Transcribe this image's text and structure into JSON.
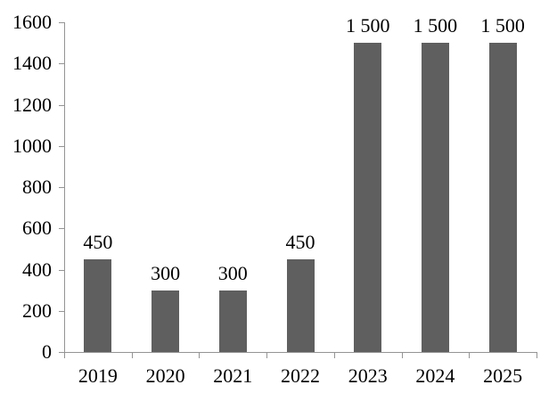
{
  "chart_data": {
    "type": "bar",
    "title": "",
    "xlabel": "",
    "ylabel": "",
    "categories": [
      "2019",
      "2020",
      "2021",
      "2022",
      "2023",
      "2024",
      "2025"
    ],
    "values": [
      450,
      300,
      300,
      450,
      1500,
      1500,
      1500
    ],
    "data_labels": [
      "450",
      "300",
      "300",
      "450",
      "1 500",
      "1 500",
      "1 500"
    ],
    "ylim": [
      0,
      1600
    ],
    "ytick_step": 200,
    "ytick_labels": [
      "0",
      "200",
      "400",
      "600",
      "800",
      "1000",
      "1200",
      "1400",
      "1600"
    ],
    "grid": false,
    "legend_position": "none",
    "colors": {
      "bar_fill": "#5f5f5f",
      "axis_line": "#949494",
      "text": "#000000",
      "background": "#ffffff"
    }
  }
}
